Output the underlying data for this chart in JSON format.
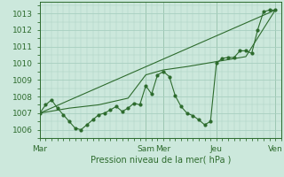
{
  "background_color": "#cce8dc",
  "grid_color": "#a8cfc0",
  "line_color": "#2d6b2d",
  "marker_color": "#2d6b2d",
  "xlabel_color": "#2d6b2d",
  "tick_color": "#2d6b2d",
  "xlabel": "Pression niveau de la mer( hPa )",
  "ylim": [
    1005.5,
    1013.7
  ],
  "yticks": [
    1006,
    1007,
    1008,
    1009,
    1010,
    1011,
    1012,
    1013
  ],
  "day_labels": [
    "Mar",
    "Sam",
    "Mer",
    "Jeu",
    "Ven"
  ],
  "day_positions": [
    0,
    18,
    21,
    30,
    40
  ],
  "xlim": [
    0,
    41
  ],
  "detailed_x": [
    0,
    1,
    2,
    3,
    4,
    5,
    6,
    7,
    8,
    9,
    10,
    11,
    12,
    13,
    14,
    15,
    16,
    17,
    18,
    19,
    20,
    21,
    22,
    23,
    24,
    25,
    26,
    27,
    28,
    29,
    30,
    31,
    32,
    33,
    34,
    35,
    36,
    37,
    38,
    39,
    40
  ],
  "detailed_y": [
    1007.0,
    1007.5,
    1007.8,
    1007.3,
    1006.9,
    1006.5,
    1006.1,
    1006.0,
    1006.3,
    1006.6,
    1006.9,
    1007.0,
    1007.2,
    1007.4,
    1007.1,
    1007.3,
    1007.6,
    1007.5,
    1008.65,
    1008.15,
    1009.3,
    1009.5,
    1009.2,
    1008.05,
    1007.4,
    1007.0,
    1006.85,
    1006.6,
    1006.3,
    1006.5,
    1010.0,
    1010.3,
    1010.35,
    1010.35,
    1010.75,
    1010.75,
    1010.6,
    1012.0,
    1013.1,
    1013.2,
    1013.2
  ],
  "smooth_x": [
    0,
    5,
    10,
    15,
    18,
    21,
    25,
    30,
    35,
    40
  ],
  "smooth_y": [
    1007.0,
    1007.3,
    1007.5,
    1007.9,
    1009.3,
    1009.6,
    1009.8,
    1010.1,
    1010.4,
    1013.2
  ],
  "trend_x": [
    0,
    40
  ],
  "trend_y": [
    1007.0,
    1013.2
  ]
}
